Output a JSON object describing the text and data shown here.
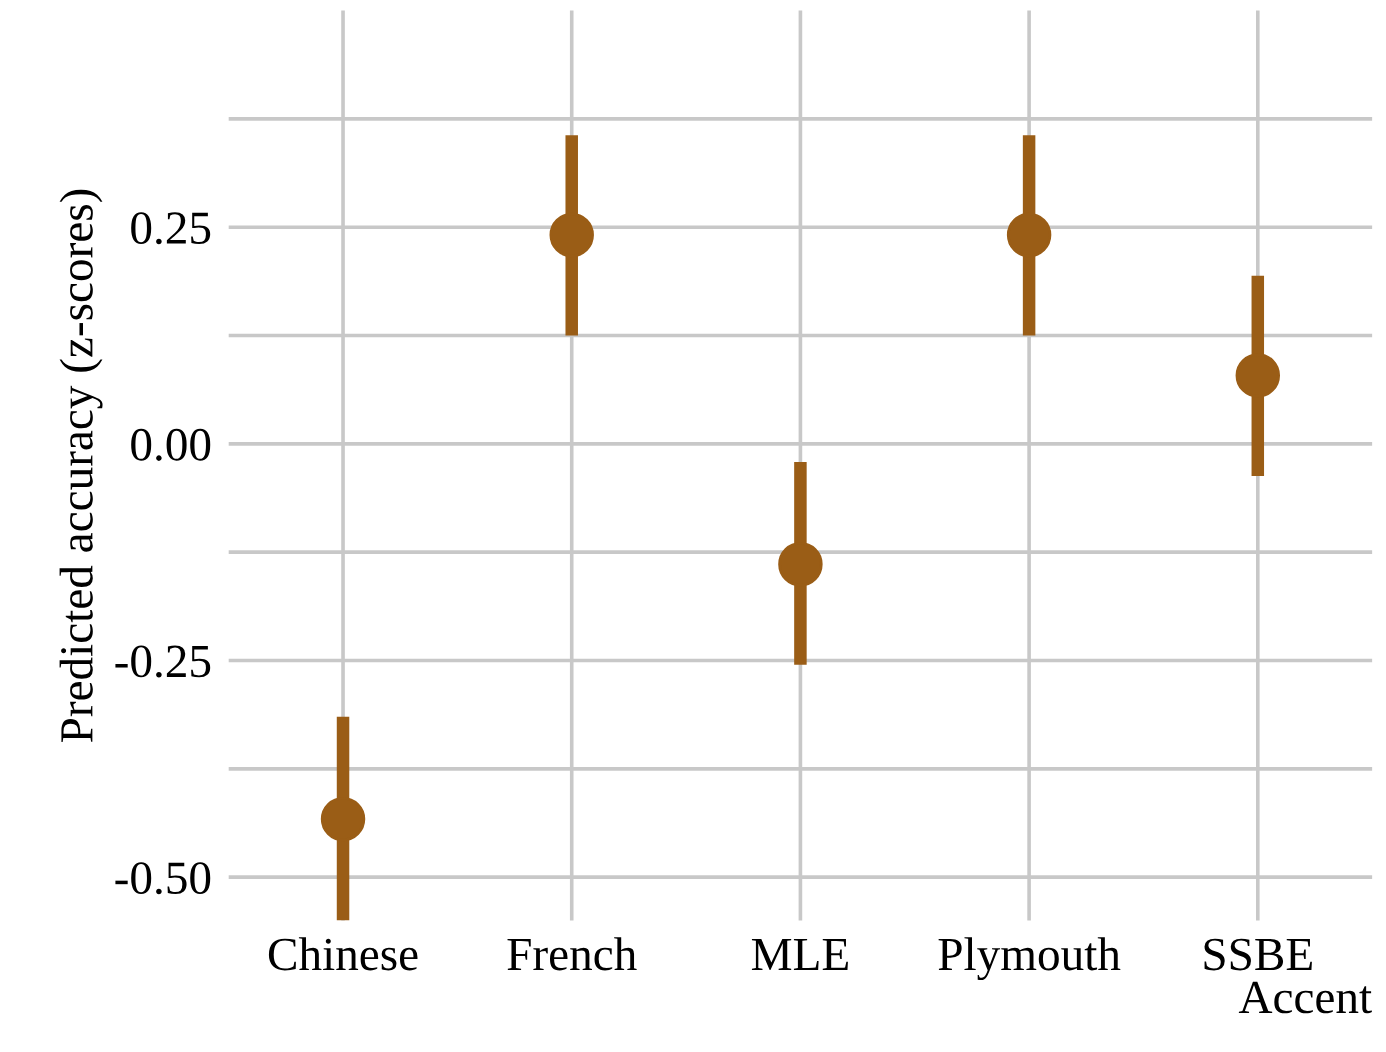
{
  "chart_data": {
    "type": "scatter",
    "xlabel": "Accent",
    "ylabel": "Predicted accuracy (z-scores)",
    "categories": [
      "Chinese",
      "French",
      "MLE",
      "Plymouth",
      "SSBE"
    ],
    "series": [
      {
        "color": "#9a5d16",
        "values": [
          -0.433,
          0.241,
          -0.139,
          0.241,
          0.079
        ],
        "errors": [
          [
            -0.55,
            -0.315
          ],
          [
            0.125,
            0.356
          ],
          [
            -0.255,
            -0.021
          ],
          [
            0.125,
            0.356
          ],
          [
            -0.037,
            0.194
          ]
        ]
      }
    ],
    "ylim": [
      -0.55,
      0.5
    ],
    "yticks": [
      {
        "value": -0.5,
        "label": "-0.50"
      },
      {
        "value": -0.375,
        "label": null
      },
      {
        "value": -0.25,
        "label": "-0.25"
      },
      {
        "value": -0.125,
        "label": null
      },
      {
        "value": 0,
        "label": "0.00"
      },
      {
        "value": 0.125,
        "label": null
      },
      {
        "value": 0.25,
        "label": "0.25"
      },
      {
        "value": 0.375,
        "label": null
      }
    ],
    "grid": true,
    "marker": "circle",
    "legend": false
  }
}
